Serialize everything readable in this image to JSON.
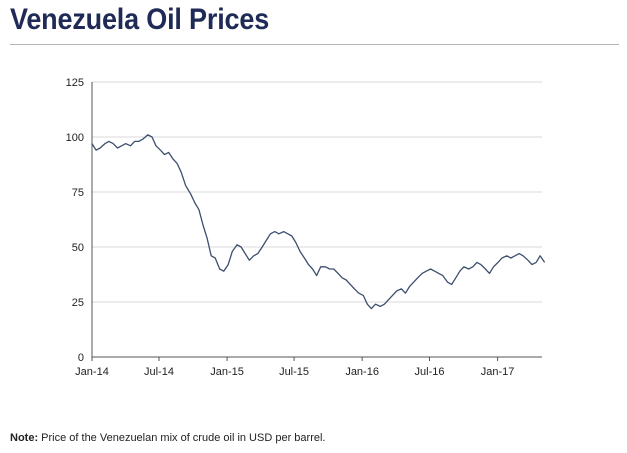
{
  "page": {
    "title": "Venezuela Oil Prices",
    "note_label": "Note:",
    "note_text": " Price of the Venezuelan mix of crude oil in USD per barrel."
  },
  "colors": {
    "title": "#1f2a56",
    "line": "#3d4f6e",
    "grid": "#d9d9d9",
    "axis": "#555555"
  },
  "chart_data": {
    "type": "line",
    "title": "",
    "xlabel": "",
    "ylabel": "",
    "ylim": [
      0,
      125
    ],
    "yticks": [
      0,
      25,
      50,
      75,
      100,
      125
    ],
    "xlim": [
      "2014-01",
      "2017-05"
    ],
    "xticks": [
      {
        "label": "Jan-14",
        "date": "2014-01"
      },
      {
        "label": "Jul-14",
        "date": "2014-07"
      },
      {
        "label": "Jan-15",
        "date": "2015-01"
      },
      {
        "label": "Jul-15",
        "date": "2015-07"
      },
      {
        "label": "Jan-16",
        "date": "2016-01"
      },
      {
        "label": "Jul-16",
        "date": "2016-07"
      },
      {
        "label": "Jan-17",
        "date": "2017-01"
      }
    ],
    "grid": "horizontal",
    "legend": "none",
    "series": [
      {
        "name": "",
        "points": [
          [
            "2014-01-01",
            97
          ],
          [
            "2014-01-12",
            94
          ],
          [
            "2014-01-23",
            95
          ],
          [
            "2014-02-05",
            97
          ],
          [
            "2014-02-16",
            98
          ],
          [
            "2014-02-27",
            97
          ],
          [
            "2014-03-11",
            95
          ],
          [
            "2014-03-22",
            96
          ],
          [
            "2014-04-02",
            97
          ],
          [
            "2014-04-15",
            96
          ],
          [
            "2014-04-26",
            98
          ],
          [
            "2014-05-07",
            98
          ],
          [
            "2014-05-18",
            99
          ],
          [
            "2014-06-01",
            101
          ],
          [
            "2014-06-12",
            100
          ],
          [
            "2014-06-23",
            96
          ],
          [
            "2014-07-05",
            94
          ],
          [
            "2014-07-16",
            92
          ],
          [
            "2014-07-27",
            93
          ],
          [
            "2014-08-08",
            90
          ],
          [
            "2014-08-19",
            88
          ],
          [
            "2014-08-30",
            84
          ],
          [
            "2014-09-11",
            78
          ],
          [
            "2014-09-25",
            74
          ],
          [
            "2014-10-06",
            70
          ],
          [
            "2014-10-17",
            67
          ],
          [
            "2014-10-28",
            60
          ],
          [
            "2014-11-08",
            54
          ],
          [
            "2014-11-19",
            46
          ],
          [
            "2014-11-30",
            45
          ],
          [
            "2014-12-12",
            40
          ],
          [
            "2014-12-23",
            39
          ],
          [
            "2015-01-04",
            42
          ],
          [
            "2015-01-15",
            48
          ],
          [
            "2015-01-28",
            51
          ],
          [
            "2015-02-08",
            50
          ],
          [
            "2015-02-19",
            47
          ],
          [
            "2015-03-02",
            44
          ],
          [
            "2015-03-14",
            46
          ],
          [
            "2015-03-25",
            47
          ],
          [
            "2015-04-06",
            50
          ],
          [
            "2015-04-17",
            53
          ],
          [
            "2015-04-28",
            56
          ],
          [
            "2015-05-10",
            57
          ],
          [
            "2015-05-21",
            56
          ],
          [
            "2015-06-03",
            57
          ],
          [
            "2015-06-14",
            56
          ],
          [
            "2015-06-25",
            55
          ],
          [
            "2015-07-06",
            52
          ],
          [
            "2015-07-17",
            48
          ],
          [
            "2015-07-29",
            45
          ],
          [
            "2015-08-09",
            42
          ],
          [
            "2015-08-20",
            40
          ],
          [
            "2015-08-31",
            37
          ],
          [
            "2015-09-11",
            41
          ],
          [
            "2015-09-24",
            41
          ],
          [
            "2015-10-05",
            40
          ],
          [
            "2015-10-16",
            40
          ],
          [
            "2015-10-28",
            38
          ],
          [
            "2015-11-08",
            36
          ],
          [
            "2015-11-19",
            35
          ],
          [
            "2015-11-30",
            33
          ],
          [
            "2015-12-11",
            31
          ],
          [
            "2015-12-23",
            29
          ],
          [
            "2016-01-04",
            28
          ],
          [
            "2016-01-15",
            24
          ],
          [
            "2016-01-26",
            22
          ],
          [
            "2016-02-06",
            24
          ],
          [
            "2016-02-19",
            23
          ],
          [
            "2016-03-01",
            24
          ],
          [
            "2016-03-12",
            26
          ],
          [
            "2016-03-23",
            28
          ],
          [
            "2016-04-03",
            30
          ],
          [
            "2016-04-16",
            31
          ],
          [
            "2016-04-27",
            29
          ],
          [
            "2016-05-08",
            32
          ],
          [
            "2016-05-19",
            34
          ],
          [
            "2016-05-30",
            36
          ],
          [
            "2016-06-11",
            38
          ],
          [
            "2016-06-22",
            39
          ],
          [
            "2016-07-04",
            40
          ],
          [
            "2016-07-15",
            39
          ],
          [
            "2016-07-26",
            38
          ],
          [
            "2016-08-06",
            37
          ],
          [
            "2016-08-19",
            34
          ],
          [
            "2016-08-30",
            33
          ],
          [
            "2016-09-10",
            36
          ],
          [
            "2016-09-21",
            39
          ],
          [
            "2016-10-02",
            41
          ],
          [
            "2016-10-15",
            40
          ],
          [
            "2016-10-26",
            41
          ],
          [
            "2016-11-06",
            43
          ],
          [
            "2016-11-17",
            42
          ],
          [
            "2016-11-29",
            40
          ],
          [
            "2016-12-10",
            38
          ],
          [
            "2016-12-21",
            41
          ],
          [
            "2017-01-02",
            43
          ],
          [
            "2017-01-13",
            45
          ],
          [
            "2017-01-26",
            46
          ],
          [
            "2017-02-06",
            45
          ],
          [
            "2017-02-17",
            46
          ],
          [
            "2017-02-28",
            47
          ],
          [
            "2017-03-11",
            46
          ],
          [
            "2017-03-24",
            44
          ],
          [
            "2017-04-04",
            42
          ],
          [
            "2017-04-15",
            43
          ],
          [
            "2017-04-26",
            46
          ],
          [
            "2017-05-08",
            43
          ]
        ]
      }
    ]
  }
}
